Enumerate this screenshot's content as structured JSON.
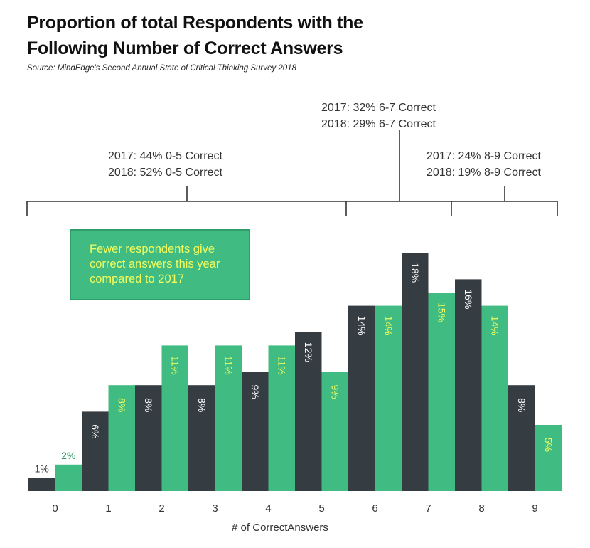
{
  "title_lines": [
    "Proportion of total Respondents with the",
    "Following Number of Correct Answers"
  ],
  "source": "Source: MindEdge's Second Annual State of Critical Thinking Survey 2018",
  "brackets": [
    {
      "lines": [
        "2017: 44% 0-5 Correct",
        "2018: 52% 0-5 Correct"
      ]
    },
    {
      "lines": [
        "2017: 32% 6-7 Correct",
        "2018: 29% 6-7 Correct"
      ]
    },
    {
      "lines": [
        "2017: 24% 8-9 Correct",
        "2018: 19% 8-9 Correct"
      ]
    }
  ],
  "callout": {
    "lines": [
      "Fewer respondents give",
      "correct answers this year",
      "compared to 2017"
    ]
  },
  "colors": {
    "series_2017": "#363d42",
    "series_2018": "#40bc82",
    "label_on_2017": "#ffffff",
    "label_on_2018": "#f2fc5c",
    "callout_fill": "#40bc82",
    "bracket_line": "#333333"
  },
  "chart_data": {
    "type": "bar",
    "title": "Proportion of total Respondents with the Following Number of Correct Answers",
    "xlabel": "# of CorrectAnswers",
    "ylabel": "",
    "categories": [
      "0",
      "1",
      "2",
      "3",
      "4",
      "5",
      "6",
      "7",
      "8",
      "9"
    ],
    "series": [
      {
        "name": "2017",
        "values": [
          1,
          6,
          8,
          8,
          9,
          12,
          14,
          18,
          16,
          8
        ],
        "labels": [
          "1%",
          "6%",
          "8%",
          "8%",
          "9%",
          "12%",
          "14%",
          "18%",
          "16%",
          "8%"
        ]
      },
      {
        "name": "2018",
        "values": [
          2,
          8,
          11,
          11,
          11,
          9,
          14,
          15,
          14,
          5
        ],
        "labels": [
          "2%",
          "8%",
          "11%",
          "11%",
          "11%",
          "9%",
          "14%",
          "15%",
          "14%",
          "5%"
        ]
      }
    ],
    "ylim": [
      0,
      20
    ],
    "grid": false,
    "legend": "none"
  }
}
